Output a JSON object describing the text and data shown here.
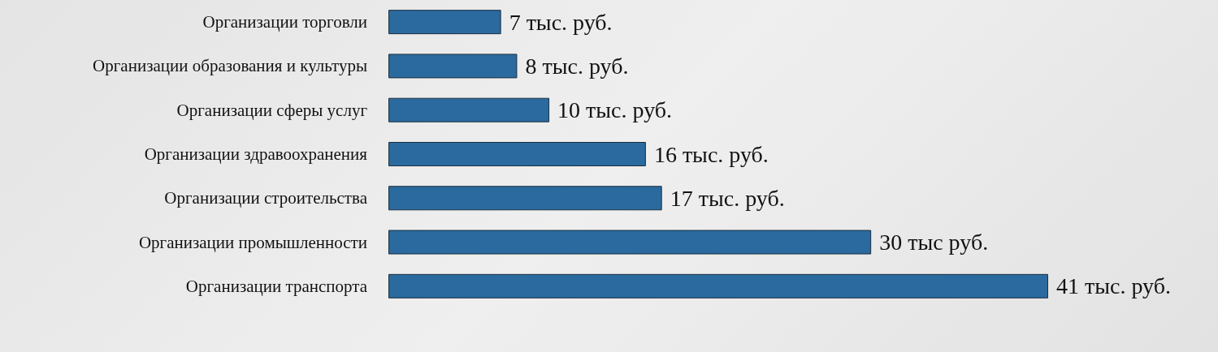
{
  "chart_data": {
    "type": "bar",
    "orientation": "horizontal",
    "categories": [
      "Организации торговли",
      "Организации образования и культуры",
      "Организации сферы услуг",
      "Организации здравоохранения",
      "Организации строительства",
      "Организации промышленности",
      "Организации транспорта"
    ],
    "values": [
      7,
      8,
      10,
      16,
      17,
      30,
      41
    ],
    "color": "#2a6a9e",
    "value_labels": [
      "7 тыс. руб.",
      "8 тыс. руб.",
      "10 тыс. руб.",
      "16 тыс. руб.",
      "17 тыс. руб.",
      "30 тыс руб.",
      "41 тыс. руб."
    ]
  }
}
